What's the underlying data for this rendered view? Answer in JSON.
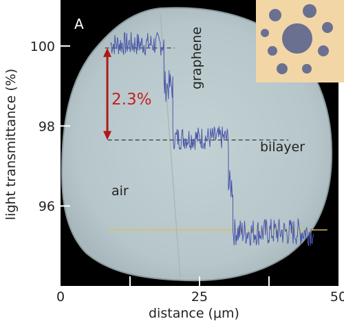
{
  "chart_data": {
    "type": "line",
    "panel_label": "A",
    "xlabel": "distance (μm)",
    "ylabel": "light transmittance (%)",
    "xlim": [
      0,
      50
    ],
    "ylim": [
      94.0,
      101.15
    ],
    "x_ticks": [
      0,
      25,
      50
    ],
    "y_ticks": [
      96,
      98,
      100
    ],
    "annotations": {
      "step": "2.3%",
      "graphene": "graphene",
      "bilayer": "bilayer",
      "air": "air"
    },
    "reference_lines": [
      {
        "y": 99.95,
        "x": [
          8.0,
          20.5
        ],
        "style": "dashed",
        "color": "#333333"
      },
      {
        "y": 97.65,
        "x": [
          8.5,
          41.0
        ],
        "style": "dashed",
        "color": "#333333"
      },
      {
        "y": 95.4,
        "x": [
          8.5,
          48.0
        ],
        "style": "solid",
        "color": "#d8c060"
      }
    ],
    "series": [
      {
        "color": "#4a56a8",
        "segments": [
          {
            "x": [
              9.0,
              18.6
            ],
            "level": 100.05,
            "noise": 0.3
          },
          {
            "x": [
              18.6,
              20.2
            ],
            "level": 99.0,
            "noise": 0.4
          },
          {
            "x": [
              20.2,
              30.2
            ],
            "level": 97.7,
            "noise": 0.3
          },
          {
            "x": [
              30.2,
              31.0
            ],
            "level": 96.5,
            "noise": 0.4
          },
          {
            "x": [
              31.0,
              45.5
            ],
            "level": 95.35,
            "noise": 0.35
          }
        ]
      }
    ],
    "colors": {
      "background": "#000000",
      "disk": "#b9c8cc",
      "arrow": "#b01818",
      "step_text": "#c42020",
      "inset_bg": "#f2d6a6",
      "inset_holes": "#6a7090"
    }
  }
}
